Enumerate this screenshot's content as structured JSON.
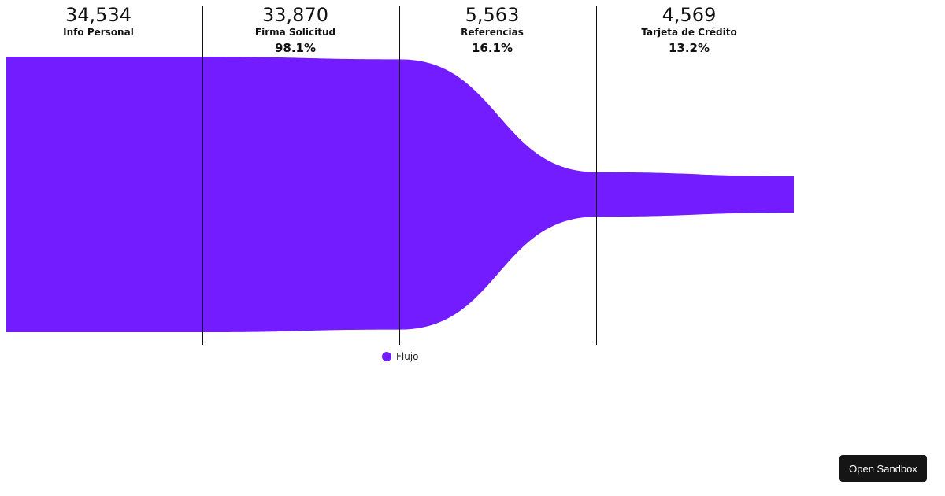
{
  "chart_data": {
    "type": "area",
    "stages": [
      {
        "name": "Info Personal",
        "value": 34534,
        "value_label": "34,534",
        "percent_label": ""
      },
      {
        "name": "Firma Solicitud",
        "value": 33870,
        "value_label": "33,870",
        "percent_label": "98.1%"
      },
      {
        "name": "Referencias",
        "value": 5563,
        "value_label": "5,563",
        "percent_label": "16.1%"
      },
      {
        "name": "Tarjeta de Crédito",
        "value": 4569,
        "value_label": "4,569",
        "percent_label": "13.2%"
      }
    ],
    "series": [
      {
        "name": "Flujo",
        "values": [
          34534,
          33870,
          5563,
          4569
        ]
      }
    ],
    "ylim": [
      0,
      34534
    ],
    "legend_position": "bottom-center",
    "colors": {
      "flow": "#721cff",
      "divider": "#111111"
    }
  },
  "legend": {
    "label": "Flujo"
  },
  "toolbar": {
    "open_sandbox_label": "Open Sandbox"
  }
}
